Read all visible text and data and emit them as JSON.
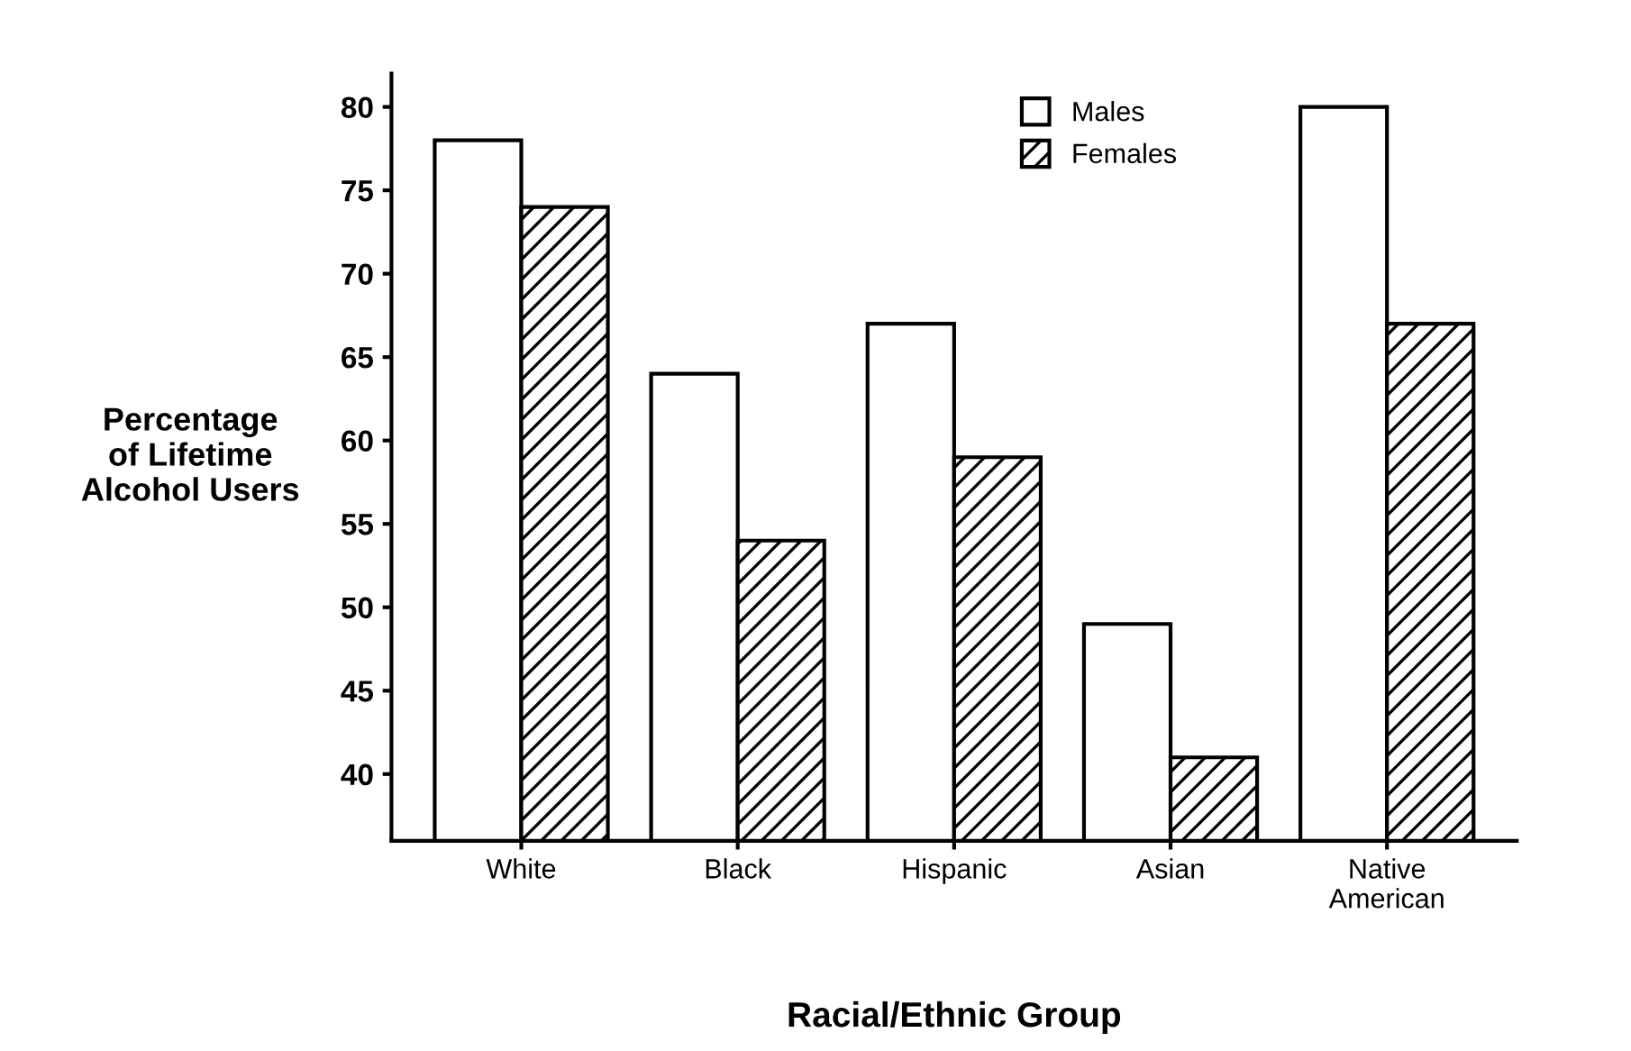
{
  "chart_data": {
    "type": "bar",
    "xlabel": "Racial/Ethnic Group",
    "ylabel": "Percentage\nof Lifetime\nAlcohol Users",
    "categories": [
      "White",
      "Black",
      "Hispanic",
      "Asian",
      "Native\nAmerican"
    ],
    "series": [
      {
        "name": "Males",
        "color": "#ffffff",
        "values": [
          78,
          64,
          67,
          49,
          80
        ]
      },
      {
        "name": "Females",
        "color": "#000000",
        "values": [
          74,
          54,
          59,
          41,
          67
        ]
      }
    ],
    "ylim": [
      36,
      82
    ],
    "yticks": [
      40,
      45,
      50,
      55,
      60,
      65,
      70,
      75,
      80
    ],
    "grid": false,
    "legend": "top right"
  }
}
